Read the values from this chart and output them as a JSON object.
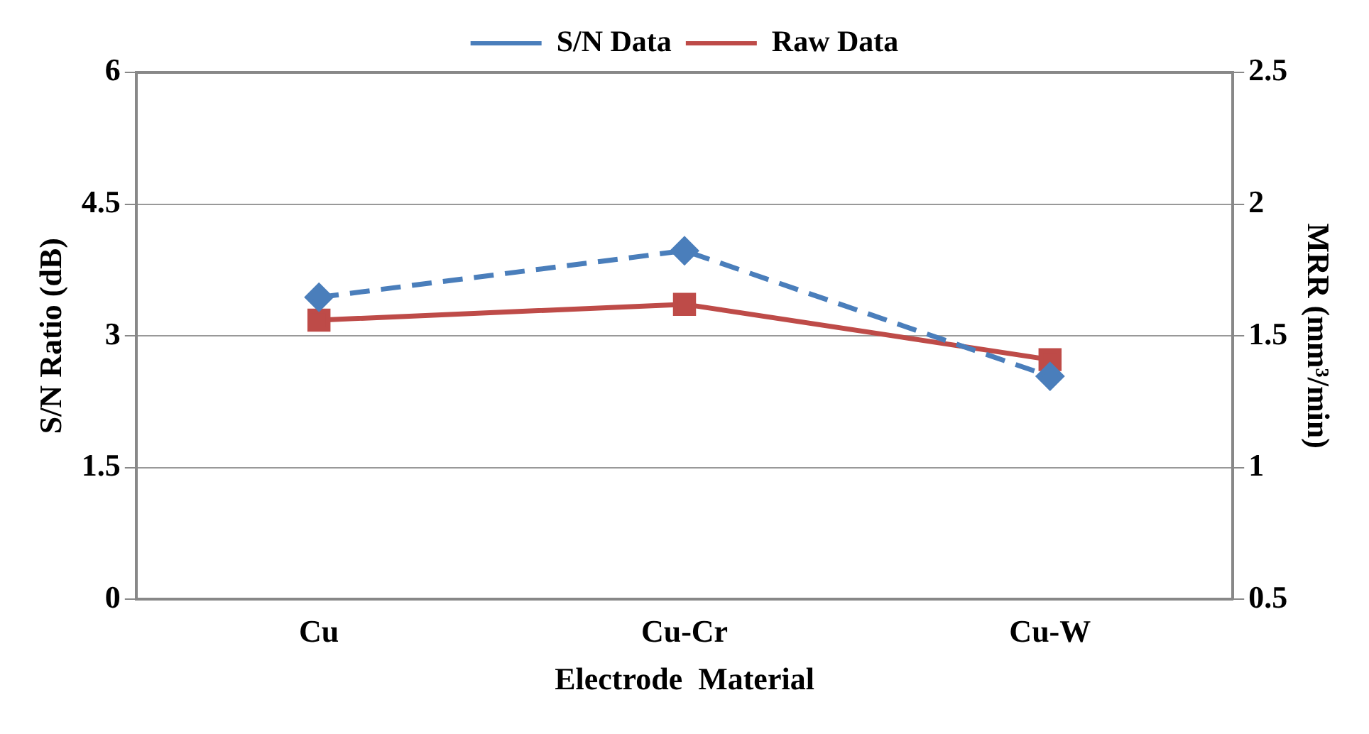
{
  "chart_data": {
    "type": "line",
    "xlabel": "Electrode  Material",
    "ylabel": "S/N Ratio (dB)",
    "y2label": "MRR (mm³/min)",
    "categories": [
      "Cu",
      "Cu-Cr",
      "Cu-W"
    ],
    "series": [
      {
        "name": "S/N Data",
        "color": "#4a7ebb",
        "values": [
          3.44,
          3.97,
          2.54
        ],
        "marker": "diamond",
        "line_style": "dashed"
      },
      {
        "name": "Raw Data",
        "color": "#be4b48",
        "values": [
          1.56,
          1.62,
          1.41
        ],
        "axis": "y2",
        "marker": "square",
        "line_style": "solid"
      }
    ],
    "ylim": [
      0,
      6
    ],
    "yticks": [
      0,
      1.5,
      3,
      4.5,
      6
    ],
    "y2lim": [
      0.5,
      2.5
    ],
    "y2ticks": [
      0.5,
      1,
      1.5,
      2,
      2.5
    ],
    "grid": "y",
    "legend": "top"
  }
}
